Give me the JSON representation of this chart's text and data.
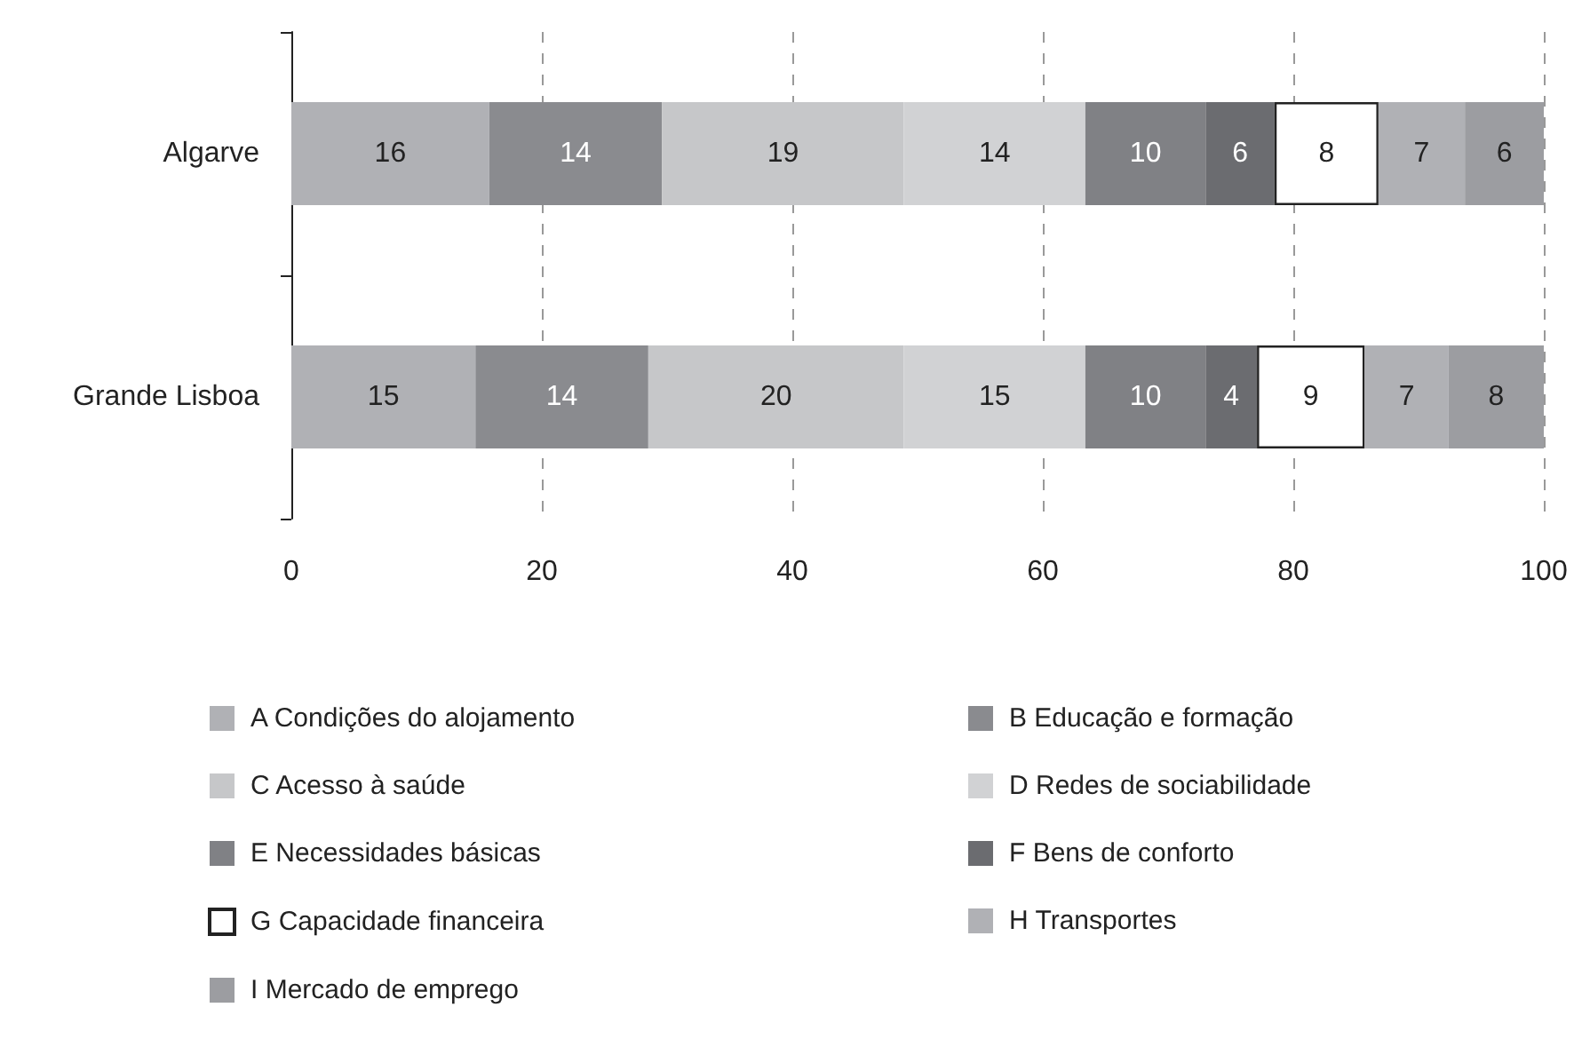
{
  "chart_data": {
    "type": "bar",
    "orientation": "horizontal",
    "stacked": true,
    "categories": [
      "Algarve",
      "Grande Lisboa"
    ],
    "series": [
      {
        "name": "A Condições do alojamento",
        "color": "#b0b1b5",
        "values": [
          15.8,
          14.7
        ],
        "value_labels": [
          "16",
          "15"
        ]
      },
      {
        "name": "B Educação e formação",
        "color": "#8a8b8f",
        "values": [
          13.8,
          13.8
        ],
        "value_labels": [
          "14",
          "14"
        ]
      },
      {
        "name": "C Acesso à saúde",
        "color": "#c6c7c9",
        "values": [
          19.3,
          20.4
        ],
        "value_labels": [
          "19",
          "20"
        ]
      },
      {
        "name": "D Redes de sociabilidade",
        "color": "#d1d2d4",
        "values": [
          14.5,
          14.5
        ],
        "value_labels": [
          "14",
          "15"
        ]
      },
      {
        "name": "E Necessidades básicas",
        "color": "#808185",
        "values": [
          9.6,
          9.6
        ],
        "value_labels": [
          "10",
          "10"
        ]
      },
      {
        "name": "F Bens de conforto",
        "color": "#6b6c70",
        "values": [
          5.5,
          4.1
        ],
        "value_labels": [
          "6",
          "4"
        ]
      },
      {
        "name": "G Capacidade financeira",
        "color": "#ffffff",
        "values": [
          8.3,
          8.6
        ],
        "value_labels": [
          "8",
          "9"
        ]
      },
      {
        "name": "H Transportes",
        "color": "#b0b1b5",
        "values": [
          6.9,
          6.7
        ],
        "value_labels": [
          "7",
          "7"
        ]
      },
      {
        "name": "I Mercado de emprego",
        "color": "#9c9da1",
        "values": [
          6.3,
          7.6
        ],
        "value_labels": [
          "6",
          "8"
        ]
      }
    ],
    "xlim": [
      0,
      100
    ],
    "xticks": [
      0,
      20,
      40,
      60,
      80,
      100
    ],
    "grid": "x",
    "legend": "bottom"
  }
}
